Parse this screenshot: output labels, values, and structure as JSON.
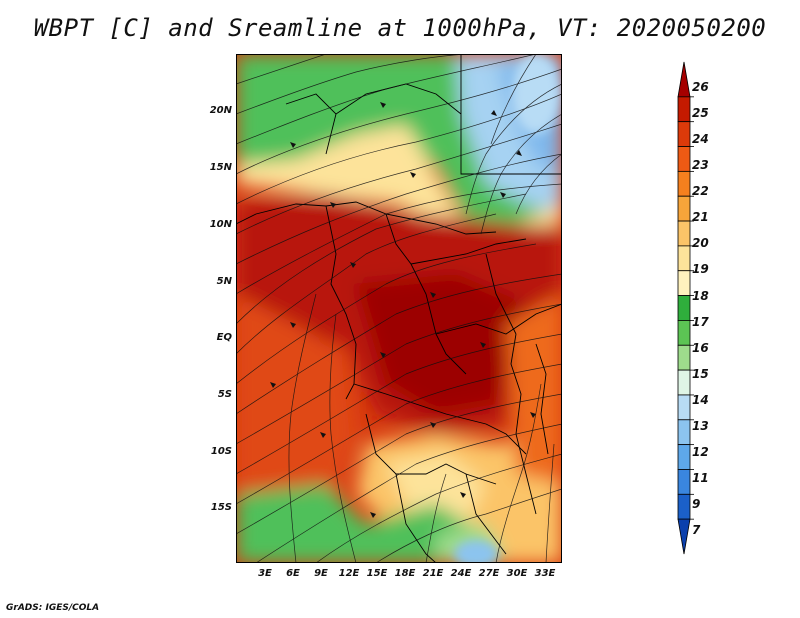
{
  "title": "WBPT [C] and Sreamline at 1000hPa, VT: 2020050200",
  "credit": "GrADS: IGES/COLA",
  "map": {
    "lat_labels": [
      "20N",
      "15N",
      "10N",
      "5N",
      "EQ",
      "5S",
      "10S",
      "15S"
    ],
    "lon_labels": [
      "3E",
      "6E",
      "9E",
      "12E",
      "15E",
      "18E",
      "21E",
      "24E",
      "27E",
      "30E",
      "33E"
    ]
  },
  "colorbar": {
    "labels": [
      "26",
      "25",
      "24",
      "23",
      "22",
      "21",
      "20",
      "19",
      "18",
      "17",
      "16",
      "15",
      "14",
      "13",
      "12",
      "11",
      "9",
      "7"
    ],
    "colors": [
      "#a50000",
      "#c41a00",
      "#dc3a0a",
      "#ee5a14",
      "#f5801e",
      "#f7a53a",
      "#fbc468",
      "#fde39a",
      "#fff2be",
      "#2fae3c",
      "#5cc454",
      "#9edc8c",
      "#dff5e6",
      "#b8dcf5",
      "#8cc4ef",
      "#5ea8ea",
      "#3a86df",
      "#1b60c9",
      "#0b40ad"
    ]
  }
}
